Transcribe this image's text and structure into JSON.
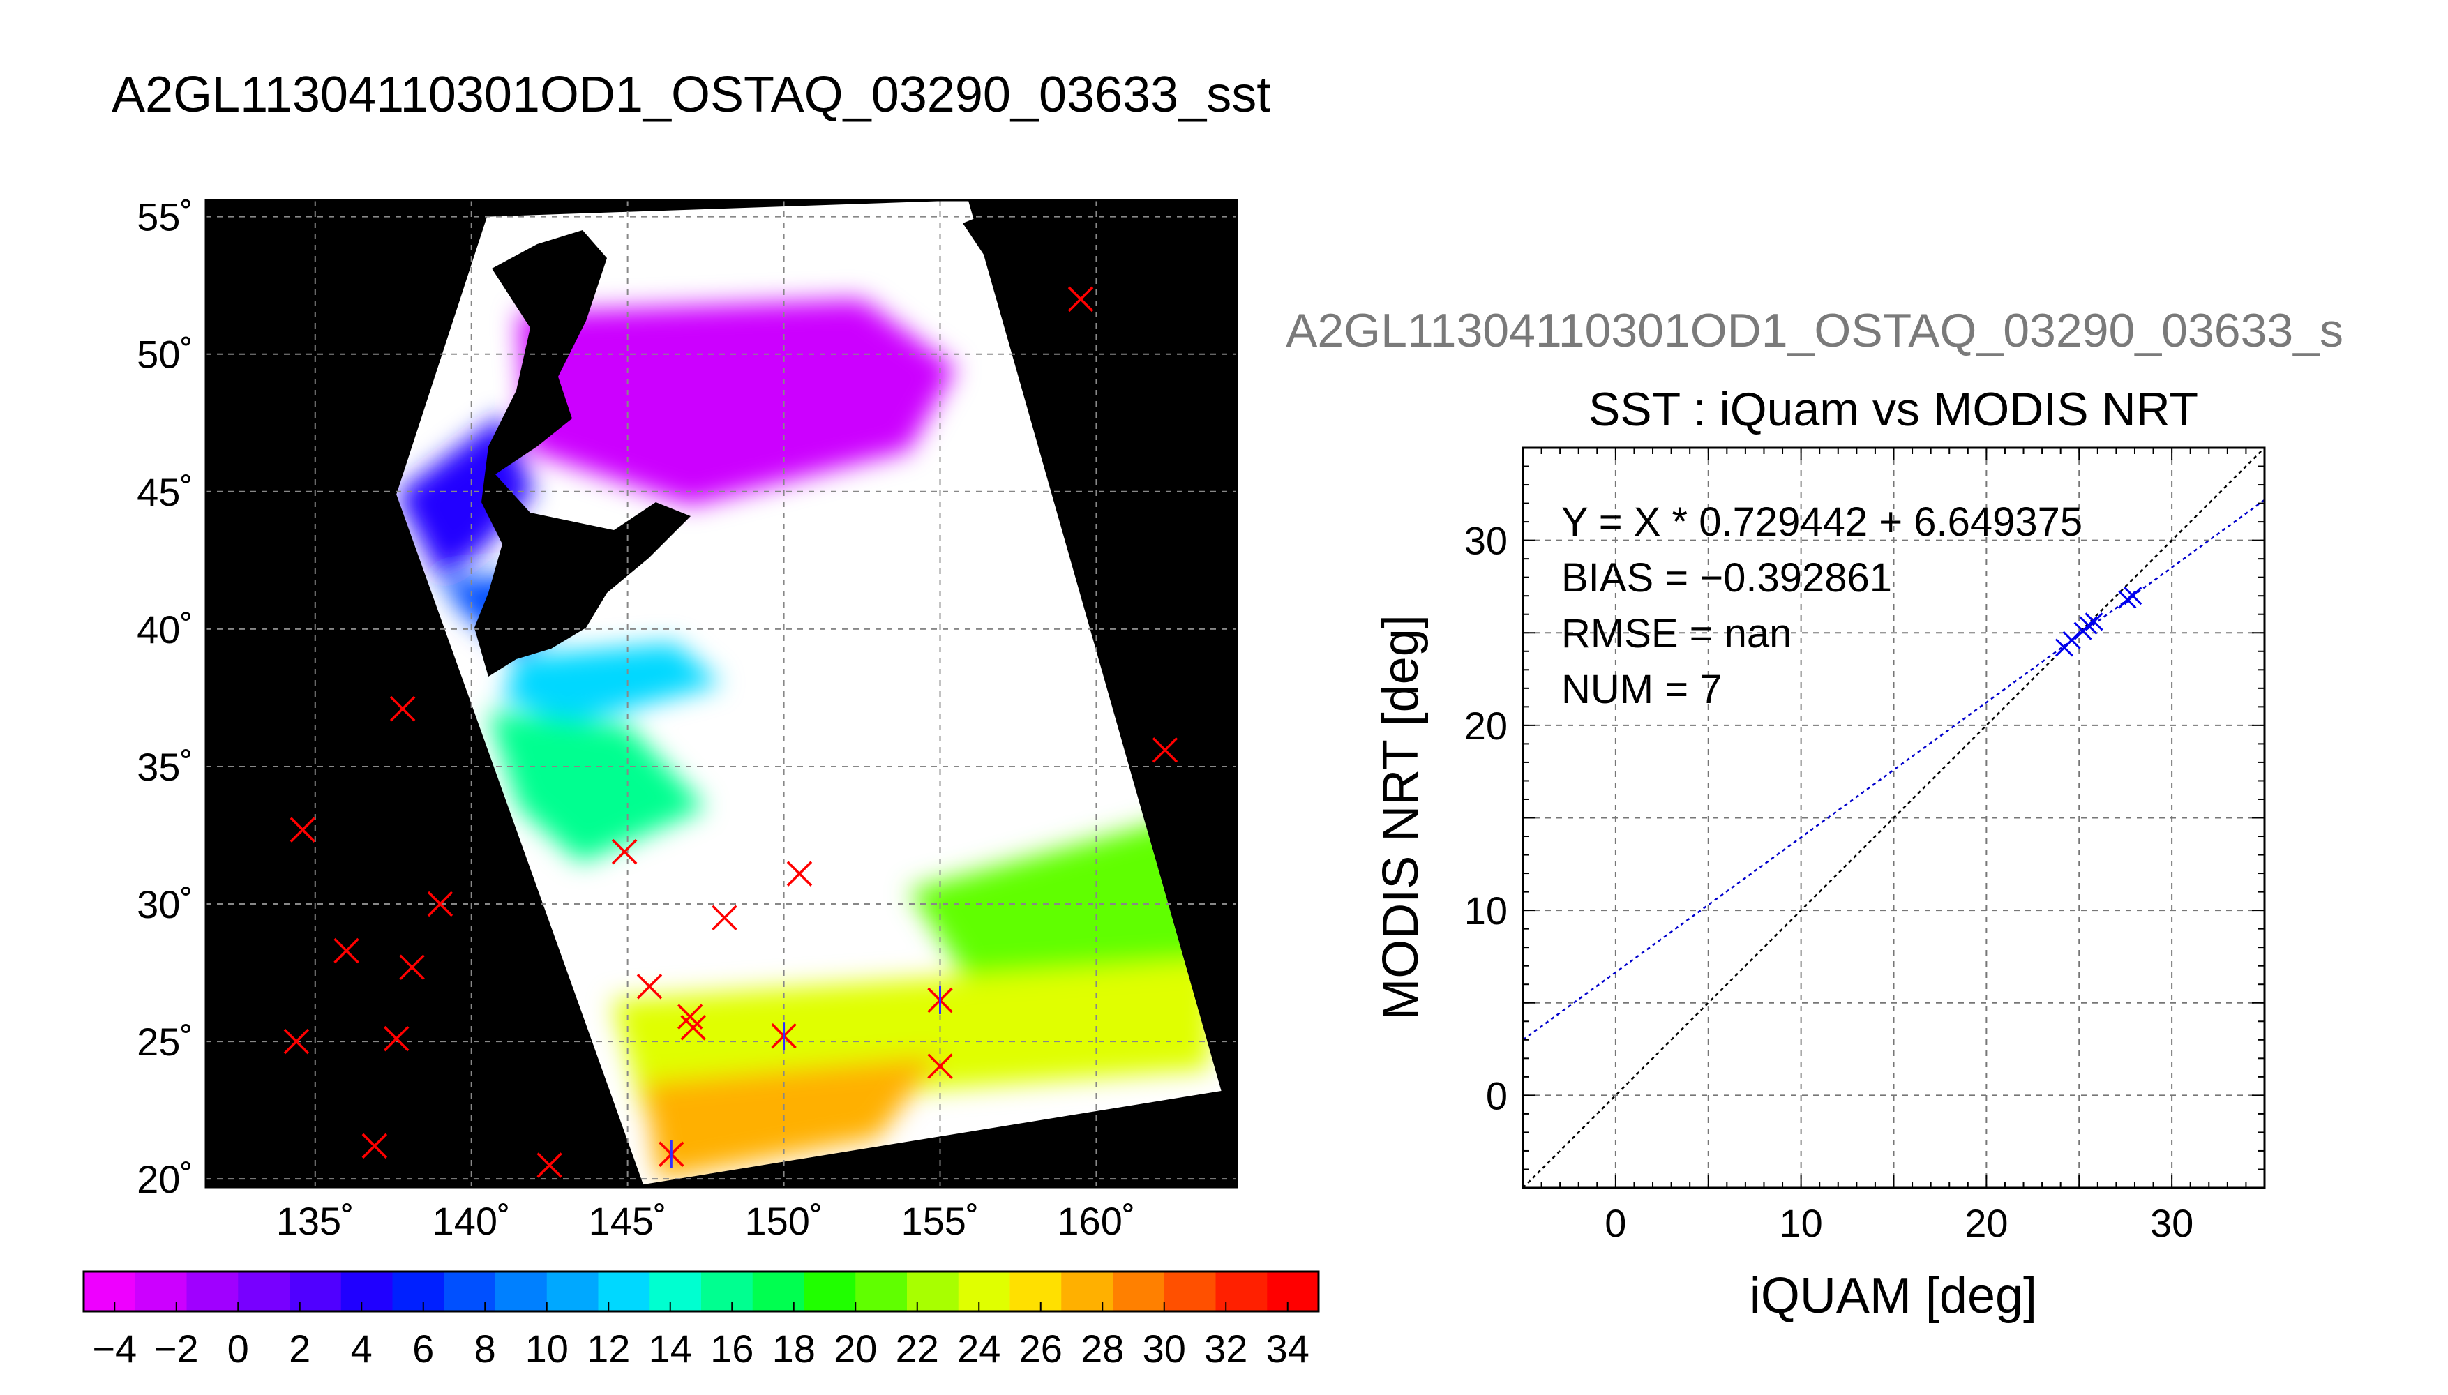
{
  "figure_title": "A2GL11304110301OD1_OSTAQ_03290_03633_sst",
  "chart_data": [
    {
      "type": "scatter",
      "panel": "map",
      "title": "",
      "xlabel": "",
      "ylabel": "",
      "xlim": [
        131.5,
        164.5
      ],
      "ylim": [
        19.7,
        55.6
      ],
      "grid": true,
      "x_ticks": [
        135,
        140,
        145,
        150,
        155,
        160
      ],
      "y_ticks": [
        20,
        25,
        30,
        35,
        40,
        45,
        50,
        55
      ],
      "x_tick_labels": [
        "135˚",
        "140˚",
        "145˚",
        "150˚",
        "155˚",
        "160˚"
      ],
      "y_tick_labels": [
        "20˚",
        "25˚",
        "30˚",
        "35˚",
        "40˚",
        "45˚",
        "50˚",
        "55˚"
      ],
      "swath_corners": [
        [
          140.5,
          55.0
        ],
        [
          155.9,
          55.6
        ],
        [
          164.0,
          23.2
        ],
        [
          145.5,
          19.8
        ],
        [
          137.6,
          44.9
        ]
      ],
      "background_color": "#000000",
      "cloud_color": "#ffffff",
      "sst_regions": [
        {
          "polygon": [
            [
              141.5,
              51.5
            ],
            [
              152.5,
              52.0
            ],
            [
              155.5,
              49.5
            ],
            [
              154.0,
              46.5
            ],
            [
              147.0,
              44.5
            ],
            [
              141.8,
              46.5
            ]
          ],
          "value": -2
        },
        {
          "polygon": [
            [
              137.6,
              44.9
            ],
            [
              141.0,
              47.8
            ],
            [
              142.0,
              45.0
            ],
            [
              140.3,
              42.8
            ],
            [
              139.0,
              41.8
            ]
          ],
          "value": 4
        },
        {
          "polygon": [
            [
              139.0,
              41.8
            ],
            [
              141.8,
              42.0
            ],
            [
              143.0,
              40.5
            ],
            [
              141.5,
              39.0
            ],
            [
              139.8,
              40.5
            ]
          ],
          "value": 8
        },
        {
          "polygon": [
            [
              141.5,
              39.0
            ],
            [
              146.5,
              39.5
            ],
            [
              148.0,
              38.0
            ],
            [
              143.0,
              36.5
            ],
            [
              141.0,
              37.5
            ]
          ],
          "value": 12
        },
        {
          "polygon": [
            [
              140.5,
              37.0
            ],
            [
              145.0,
              36.5
            ],
            [
              147.5,
              33.5
            ],
            [
              143.5,
              31.5
            ],
            [
              141.5,
              33.5
            ]
          ],
          "value": 16
        },
        {
          "polygon": [
            [
              154.0,
              30.5
            ],
            [
              163.8,
              33.5
            ],
            [
              163.9,
              28.0
            ],
            [
              156.0,
              27.0
            ]
          ],
          "value": 20
        },
        {
          "polygon": [
            [
              144.5,
              26.5
            ],
            [
              163.8,
              28.0
            ],
            [
              163.6,
              24.0
            ],
            [
              145.5,
              22.5
            ]
          ],
          "value": 24
        },
        {
          "polygon": [
            [
              145.5,
              23.5
            ],
            [
              155.0,
              24.5
            ],
            [
              153.0,
              21.5
            ],
            [
              146.0,
              20.0
            ]
          ],
          "value": 28
        }
      ],
      "x": [
        159.5,
        162.2,
        137.8,
        134.6,
        139.0,
        136.0,
        138.1,
        134.4,
        137.6,
        136.9,
        142.5,
        144.9,
        148.1,
        150.5,
        145.7,
        147.0,
        147.1,
        150.0,
        155.0,
        155.0,
        146.4
      ],
      "y": [
        52.0,
        35.6,
        37.1,
        32.7,
        30.0,
        28.3,
        27.7,
        25.0,
        25.1,
        21.2,
        20.5,
        31.9,
        29.5,
        31.1,
        27.0,
        25.9,
        25.5,
        25.2,
        24.1,
        26.5,
        20.9
      ],
      "marker": "x",
      "marker_color": "#ff0000",
      "matched_markers": {
        "x": [
          150.0,
          155.0,
          146.4
        ],
        "y": [
          25.2,
          26.5,
          20.9
        ],
        "color": "#3030ff"
      }
    },
    {
      "type": "colorbar",
      "min": -5,
      "max": 35,
      "step": 2,
      "tick_values": [
        -4,
        -2,
        0,
        2,
        4,
        6,
        8,
        10,
        12,
        14,
        16,
        18,
        20,
        22,
        24,
        26,
        28,
        30,
        32,
        34
      ],
      "tick_labels": [
        "−4",
        "−2",
        "0",
        "2",
        "4",
        "6",
        "8",
        "10",
        "12",
        "14",
        "16",
        "18",
        "20",
        "22",
        "24",
        "26",
        "28",
        "30",
        "32",
        "34"
      ],
      "colors": [
        "#ee00ff",
        "#cc00ff",
        "#a000ff",
        "#7800ff",
        "#5000ff",
        "#2000ff",
        "#0020ff",
        "#0050ff",
        "#0080ff",
        "#00a8ff",
        "#00d8ff",
        "#00ffd0",
        "#00ff90",
        "#00ff50",
        "#20ff00",
        "#60ff00",
        "#a8ff00",
        "#e0ff00",
        "#ffe000",
        "#ffb000",
        "#ff8000",
        "#ff5000",
        "#ff2000",
        "#ff0000"
      ]
    },
    {
      "type": "scatter",
      "panel": "comparison",
      "suptitle": "A2GL11304110301OD1_OSTAQ_03290_03633_s",
      "title": "SST : iQuam vs MODIS NRT",
      "xlabel": "iQUAM [deg]",
      "ylabel": "MODIS NRT [deg]",
      "xlim": [
        -5,
        35
      ],
      "ylim": [
        -5,
        35
      ],
      "grid": true,
      "x_ticks": [
        0,
        10,
        20,
        30
      ],
      "y_ticks": [
        0,
        10,
        20,
        30
      ],
      "x_tick_labels": [
        "0",
        "10",
        "20",
        "30"
      ],
      "y_tick_labels": [
        "0",
        "10",
        "20",
        "30"
      ],
      "annotations": [
        "Y = X * 0.729442 + 6.649375",
        "BIAS = −0.392861",
        "RMSE = nan",
        "NUM = 7"
      ],
      "points": {
        "x": [
          24.2,
          24.6,
          25.2,
          25.5,
          25.8,
          27.6,
          27.9
        ],
        "y": [
          24.2,
          24.6,
          25.1,
          25.4,
          25.6,
          26.8,
          27.0
        ]
      },
      "marker_color": "#0000ee",
      "fit_line": {
        "slope": 0.729442,
        "intercept": 6.649375,
        "color": "#0000cc"
      },
      "identity_line": {
        "slope": 1,
        "intercept": 0,
        "color": "#000000"
      }
    }
  ]
}
